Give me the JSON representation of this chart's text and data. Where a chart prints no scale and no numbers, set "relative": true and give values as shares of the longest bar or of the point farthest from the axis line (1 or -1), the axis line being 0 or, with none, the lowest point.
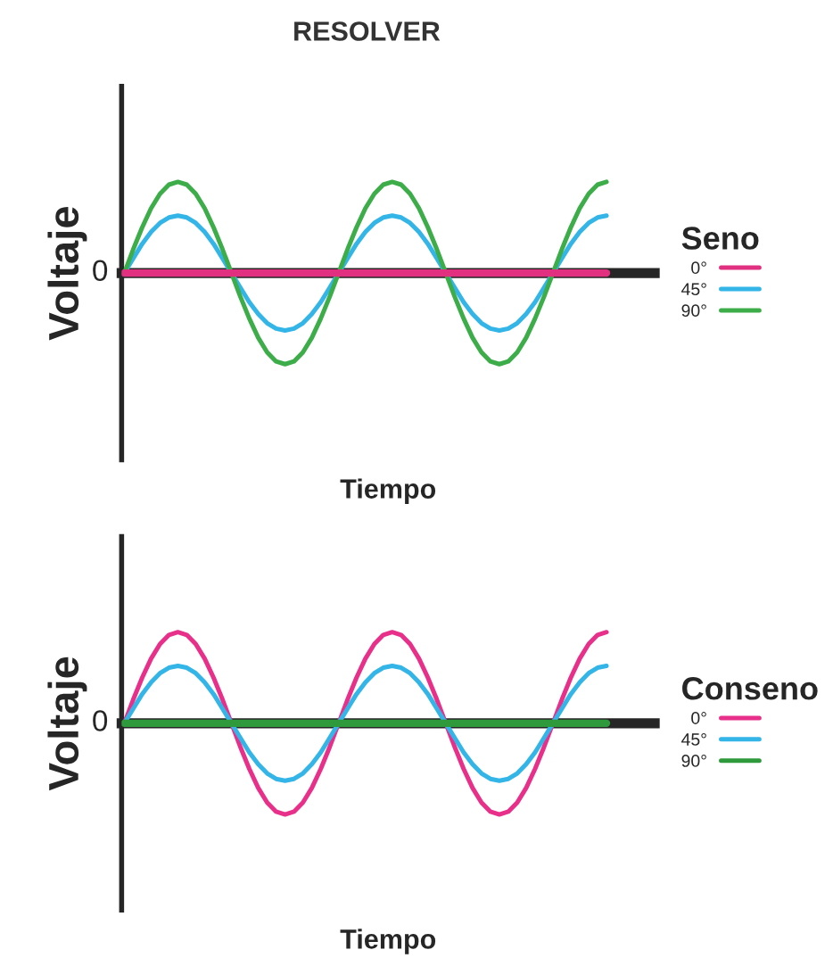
{
  "chart_data": [
    {
      "type": "line",
      "title": "RESOLVER",
      "xlabel": "Tiempo",
      "ylabel": "Voltaje",
      "legend_title": "Seno",
      "legend": "right",
      "relative": true,
      "annotations": [
        "0"
      ],
      "categories": [
        null,
        null,
        null,
        null,
        null,
        null,
        null,
        null,
        null,
        null,
        null,
        null,
        null,
        null,
        null,
        null,
        null,
        null,
        null,
        null,
        null,
        null,
        null,
        null,
        null,
        null,
        null,
        null,
        null,
        null,
        null,
        null,
        null,
        null,
        null,
        null,
        null,
        null,
        null,
        null,
        null,
        null,
        null,
        null,
        null,
        null,
        null,
        null,
        null,
        null,
        null,
        null,
        null,
        null,
        null
      ],
      "series": [
        {
          "name": "0°",
          "color": "#e0307f",
          "values": [
            0,
            0,
            0,
            0,
            0,
            0,
            0,
            0,
            0,
            0,
            0,
            0,
            0,
            0,
            0,
            0,
            0,
            0,
            0,
            0,
            0,
            0,
            0,
            0,
            0,
            0,
            0,
            0,
            0,
            0,
            0,
            0,
            0,
            0,
            0,
            0,
            0,
            0,
            0,
            0,
            0,
            0,
            0,
            0,
            0,
            0,
            0,
            0,
            0,
            0,
            0,
            0,
            0,
            0,
            0
          ]
        },
        {
          "name": "45°",
          "color": "#33b5e8",
          "values": [
            0,
            0.16,
            0.32,
            0.45,
            0.55,
            0.61,
            0.63,
            0.61,
            0.55,
            0.45,
            0.32,
            0.16,
            0,
            -0.16,
            -0.32,
            -0.45,
            -0.55,
            -0.61,
            -0.63,
            -0.61,
            -0.55,
            -0.45,
            -0.32,
            -0.16,
            0,
            0.16,
            0.32,
            0.45,
            0.55,
            0.61,
            0.63,
            0.61,
            0.55,
            0.45,
            0.32,
            0.16,
            0,
            -0.16,
            -0.32,
            -0.45,
            -0.55,
            -0.61,
            -0.63,
            -0.61,
            -0.55,
            -0.45,
            -0.32,
            -0.16,
            0,
            0.16,
            0.32,
            0.45,
            0.55,
            0.61,
            0.63
          ]
        },
        {
          "name": "90°",
          "color": "#3cad48",
          "values": [
            0,
            0.26,
            0.5,
            0.71,
            0.87,
            0.97,
            1,
            0.97,
            0.87,
            0.71,
            0.5,
            0.26,
            0,
            -0.26,
            -0.5,
            -0.71,
            -0.87,
            -0.97,
            -1,
            -0.97,
            -0.87,
            -0.71,
            -0.5,
            -0.26,
            0,
            0.26,
            0.5,
            0.71,
            0.87,
            0.97,
            1,
            0.97,
            0.87,
            0.71,
            0.5,
            0.26,
            0,
            -0.26,
            -0.5,
            -0.71,
            -0.87,
            -0.97,
            -1,
            -0.97,
            -0.87,
            -0.71,
            -0.5,
            -0.26,
            0,
            0.26,
            0.5,
            0.71,
            0.87,
            0.97,
            1
          ]
        }
      ]
    },
    {
      "type": "line",
      "xlabel": "Tiempo",
      "ylabel": "Voltaje",
      "legend_title": "Conseno",
      "legend": "right",
      "relative": true,
      "annotations": [
        "0"
      ],
      "categories": [
        null,
        null,
        null,
        null,
        null,
        null,
        null,
        null,
        null,
        null,
        null,
        null,
        null,
        null,
        null,
        null,
        null,
        null,
        null,
        null,
        null,
        null,
        null,
        null,
        null,
        null,
        null,
        null,
        null,
        null,
        null,
        null,
        null,
        null,
        null,
        null,
        null,
        null,
        null,
        null,
        null,
        null,
        null,
        null,
        null,
        null,
        null,
        null,
        null,
        null,
        null,
        null,
        null,
        null,
        null
      ],
      "series": [
        {
          "name": "0°",
          "color": "#e8308a",
          "values": [
            0,
            0.26,
            0.5,
            0.71,
            0.87,
            0.97,
            1,
            0.97,
            0.87,
            0.71,
            0.5,
            0.26,
            0,
            -0.26,
            -0.5,
            -0.71,
            -0.87,
            -0.97,
            -1,
            -0.97,
            -0.87,
            -0.71,
            -0.5,
            -0.26,
            0,
            0.26,
            0.5,
            0.71,
            0.87,
            0.97,
            1,
            0.97,
            0.87,
            0.71,
            0.5,
            0.26,
            0,
            -0.26,
            -0.5,
            -0.71,
            -0.87,
            -0.97,
            -1,
            -0.97,
            -0.87,
            -0.71,
            -0.5,
            -0.26,
            0,
            0.26,
            0.5,
            0.71,
            0.87,
            0.97,
            1
          ]
        },
        {
          "name": "45°",
          "color": "#33b5e8",
          "values": [
            0,
            0.16,
            0.32,
            0.45,
            0.55,
            0.61,
            0.63,
            0.61,
            0.55,
            0.45,
            0.32,
            0.16,
            0,
            -0.16,
            -0.32,
            -0.45,
            -0.55,
            -0.61,
            -0.63,
            -0.61,
            -0.55,
            -0.45,
            -0.32,
            -0.16,
            0,
            0.16,
            0.32,
            0.45,
            0.55,
            0.61,
            0.63,
            0.61,
            0.55,
            0.45,
            0.32,
            0.16,
            0,
            -0.16,
            -0.32,
            -0.45,
            -0.55,
            -0.61,
            -0.63,
            -0.61,
            -0.55,
            -0.45,
            -0.32,
            -0.16,
            0,
            0.16,
            0.32,
            0.45,
            0.55,
            0.61,
            0.63
          ]
        },
        {
          "name": "90°",
          "color": "#2e9a3c",
          "values": [
            0,
            0,
            0,
            0,
            0,
            0,
            0,
            0,
            0,
            0,
            0,
            0,
            0,
            0,
            0,
            0,
            0,
            0,
            0,
            0,
            0,
            0,
            0,
            0,
            0,
            0,
            0,
            0,
            0,
            0,
            0,
            0,
            0,
            0,
            0,
            0,
            0,
            0,
            0,
            0,
            0,
            0,
            0,
            0,
            0,
            0,
            0,
            0,
            0,
            0,
            0,
            0,
            0,
            0,
            0
          ]
        }
      ]
    }
  ]
}
